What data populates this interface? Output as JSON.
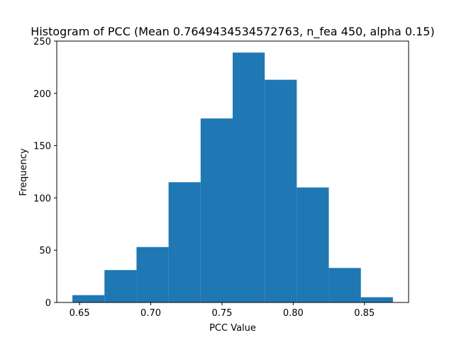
{
  "chart_data": {
    "type": "bar",
    "title": "Histogram of PCC (Mean 0.7649434534572763, n_fea 450, alpha 0.15)",
    "xlabel": "PCC Value",
    "ylabel": "Frequency",
    "xlim": [
      0.634,
      0.881
    ],
    "ylim": [
      0,
      250
    ],
    "bar_color": "#1f77b4",
    "bin_edges": [
      0.645,
      0.6675,
      0.69,
      0.7125,
      0.735,
      0.7575,
      0.78,
      0.8025,
      0.825,
      0.8475,
      0.87
    ],
    "values": [
      7,
      31,
      53,
      115,
      176,
      239,
      213,
      110,
      33,
      5
    ],
    "xticks": [
      0.65,
      0.7,
      0.75,
      0.8,
      0.85
    ],
    "xtick_labels": [
      "0.65",
      "0.70",
      "0.75",
      "0.80",
      "0.85"
    ],
    "yticks": [
      0,
      50,
      100,
      150,
      200,
      250
    ],
    "ytick_labels": [
      "0",
      "50",
      "100",
      "150",
      "200",
      "250"
    ],
    "grid": false,
    "legend": "none"
  }
}
